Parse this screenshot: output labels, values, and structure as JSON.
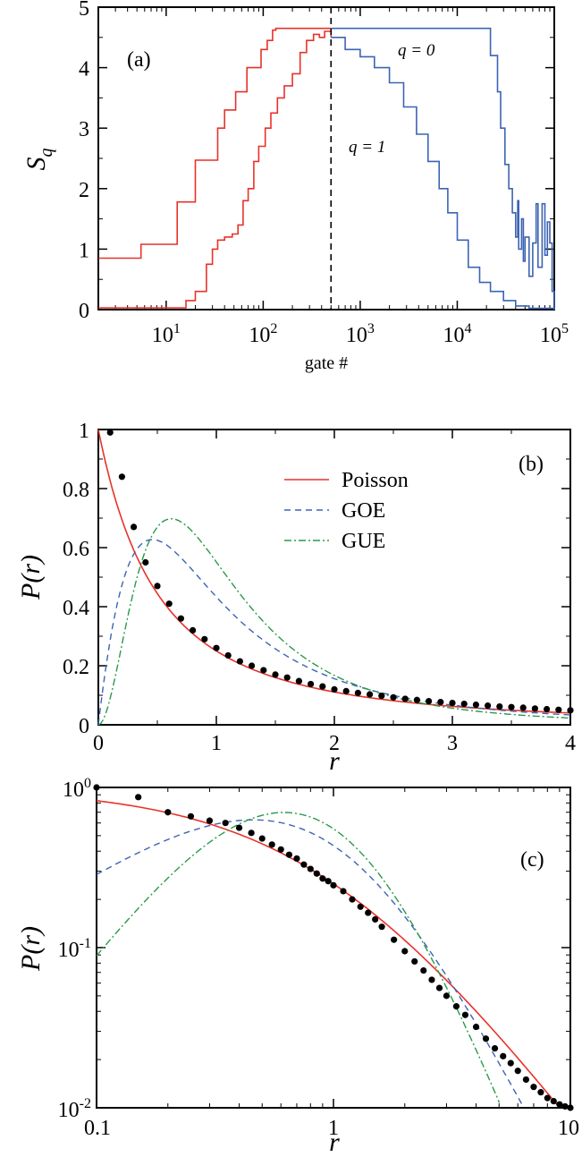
{
  "colors": {
    "poisson": "#e8322a",
    "goe": "#3c64b4",
    "gue": "#2a9a4a",
    "q0": "#3c64b4",
    "q1": "#3c64b4",
    "pre": "#e8322a",
    "points": "#000000"
  },
  "chart_data": [
    {
      "type": "line",
      "panel_label": "(a)",
      "xlabel": "gate #",
      "ylabel": "S_q",
      "xscale": "log",
      "xlim": [
        2,
        100000
      ],
      "ylim": [
        0,
        5
      ],
      "xticks": [
        {
          "v": 10,
          "base": "10",
          "exp": "1"
        },
        {
          "v": 100,
          "base": "10",
          "exp": "2"
        },
        {
          "v": 1000,
          "base": "10",
          "exp": "3"
        },
        {
          "v": 10000,
          "base": "10",
          "exp": "4"
        },
        {
          "v": 100000,
          "base": "10",
          "exp": "5"
        }
      ],
      "yticks": [
        "0",
        "1",
        "2",
        "3",
        "4",
        "5"
      ],
      "vline_x": 500,
      "annotations": {
        "q0": "q = 0",
        "q1": "q = 1"
      },
      "series": [
        {
          "id": "q0",
          "values": [
            [
              2,
              0.85
            ],
            [
              5,
              0.85
            ],
            [
              5.5,
              1.08
            ],
            [
              12,
              1.08
            ],
            [
              13,
              1.78
            ],
            [
              19,
              1.78
            ],
            [
              20,
              2.47
            ],
            [
              32,
              2.47
            ],
            [
              34,
              3.0
            ],
            [
              38,
              3.0
            ],
            [
              40,
              3.3
            ],
            [
              48,
              3.3
            ],
            [
              52,
              3.6
            ],
            [
              63,
              3.6
            ],
            [
              68,
              4.0
            ],
            [
              85,
              4.0
            ],
            [
              95,
              4.3
            ],
            [
              110,
              4.45
            ],
            [
              125,
              4.62
            ],
            [
              135,
              4.65
            ],
            [
              500,
              4.65
            ],
            [
              20000,
              4.65
            ],
            [
              22000,
              4.2
            ],
            [
              26000,
              3.6
            ],
            [
              28000,
              3.0
            ],
            [
              31000,
              2.4
            ],
            [
              34000,
              2.0
            ],
            [
              37000,
              1.6
            ],
            [
              40000,
              1.2
            ],
            [
              42000,
              1.8
            ],
            [
              43000,
              1.0
            ],
            [
              46000,
              1.5
            ],
            [
              48000,
              0.8
            ],
            [
              50000,
              1.2
            ],
            [
              55000,
              0.55
            ],
            [
              60000,
              1.1
            ],
            [
              65000,
              1.75
            ],
            [
              68000,
              0.7
            ],
            [
              75000,
              1.75
            ],
            [
              80000,
              0.9
            ],
            [
              85000,
              1.45
            ],
            [
              90000,
              1.1
            ],
            [
              95000,
              0.3
            ],
            [
              100000,
              0.0
            ]
          ]
        },
        {
          "id": "q1",
          "values": [
            [
              2,
              0.03
            ],
            [
              14,
              0.03
            ],
            [
              16,
              0.15
            ],
            [
              20,
              0.3
            ],
            [
              24,
              0.3
            ],
            [
              26,
              0.75
            ],
            [
              30,
              1.0
            ],
            [
              34,
              1.15
            ],
            [
              40,
              1.2
            ],
            [
              48,
              1.25
            ],
            [
              55,
              1.4
            ],
            [
              62,
              1.8
            ],
            [
              70,
              2.0
            ],
            [
              80,
              2.45
            ],
            [
              90,
              2.7
            ],
            [
              105,
              3.0
            ],
            [
              120,
              3.25
            ],
            [
              140,
              3.5
            ],
            [
              165,
              3.7
            ],
            [
              200,
              3.9
            ],
            [
              240,
              4.25
            ],
            [
              280,
              4.45
            ],
            [
              330,
              4.55
            ],
            [
              380,
              4.5
            ],
            [
              430,
              4.6
            ],
            [
              500,
              4.5
            ],
            [
              700,
              4.3
            ],
            [
              1000,
              4.18
            ],
            [
              1400,
              4.0
            ],
            [
              2000,
              3.75
            ],
            [
              2800,
              3.35
            ],
            [
              3800,
              2.9
            ],
            [
              5000,
              2.45
            ],
            [
              6500,
              2.0
            ],
            [
              8000,
              1.6
            ],
            [
              10000,
              1.15
            ],
            [
              13000,
              0.7
            ],
            [
              17000,
              0.45
            ],
            [
              22000,
              0.3
            ],
            [
              30000,
              0.15
            ],
            [
              40000,
              0.06
            ],
            [
              55000,
              0.02
            ],
            [
              100000,
              0.0
            ]
          ]
        }
      ]
    },
    {
      "type": "line",
      "panel_label": "(b)",
      "xlabel": "r",
      "ylabel": "P(r)",
      "xlim": [
        0,
        4
      ],
      "ylim": [
        0,
        1
      ],
      "xticks": [
        "0",
        "1",
        "2",
        "3",
        "4"
      ],
      "yticks": [
        "0",
        "0.2",
        "0.4",
        "0.6",
        "0.8",
        "1"
      ],
      "legend": [
        {
          "name": "Poisson",
          "style": "solid",
          "color_key": "poisson"
        },
        {
          "name": "GOE",
          "style": "dashed",
          "color_key": "goe"
        },
        {
          "name": "GUE",
          "style": "dashdot",
          "color_key": "gue"
        }
      ],
      "points": {
        "x": [
          0.1,
          0.2,
          0.3,
          0.4,
          0.5,
          0.6,
          0.7,
          0.8,
          0.9,
          1.0,
          1.1,
          1.2,
          1.3,
          1.4,
          1.5,
          1.6,
          1.7,
          1.8,
          1.9,
          2.0,
          2.1,
          2.2,
          2.3,
          2.4,
          2.5,
          2.6,
          2.7,
          2.8,
          2.9,
          3.0,
          3.1,
          3.2,
          3.3,
          3.4,
          3.5,
          3.6,
          3.7,
          3.8,
          3.9,
          4.0
        ],
        "y": [
          0.99,
          0.84,
          0.67,
          0.55,
          0.47,
          0.41,
          0.36,
          0.32,
          0.29,
          0.26,
          0.235,
          0.215,
          0.2,
          0.185,
          0.17,
          0.16,
          0.148,
          0.138,
          0.13,
          0.12,
          0.114,
          0.108,
          0.103,
          0.098,
          0.093,
          0.088,
          0.084,
          0.08,
          0.077,
          0.074,
          0.071,
          0.068,
          0.065,
          0.062,
          0.06,
          0.058,
          0.055,
          0.053,
          0.051,
          0.049
        ]
      }
    },
    {
      "type": "line",
      "panel_label": "(c)",
      "xlabel": "r",
      "ylabel": "P(r)",
      "xscale": "log",
      "yscale": "log",
      "xlim": [
        0.1,
        10
      ],
      "ylim": [
        0.01,
        1
      ],
      "xticks": [
        "0.1",
        "1",
        "10"
      ],
      "yticks": [
        {
          "v": 1,
          "base": "10",
          "exp": "0"
        },
        {
          "v": 0.1,
          "base": "10",
          "exp": "-1"
        },
        {
          "v": 0.01,
          "base": "10",
          "exp": "-2"
        }
      ],
      "points": {
        "x": [
          0.1,
          0.15,
          0.2,
          0.25,
          0.3,
          0.35,
          0.4,
          0.45,
          0.5,
          0.55,
          0.6,
          0.65,
          0.7,
          0.75,
          0.8,
          0.85,
          0.9,
          0.95,
          1.0,
          1.1,
          1.2,
          1.3,
          1.4,
          1.5,
          1.6,
          1.8,
          2.0,
          2.2,
          2.4,
          2.6,
          2.8,
          3.0,
          3.3,
          3.6,
          4.0,
          4.4,
          4.8,
          5.2,
          5.6,
          6.0,
          6.5,
          7.0,
          7.5,
          8.0,
          8.5,
          9.0,
          9.5,
          10.0
        ],
        "y": [
          1.0,
          0.87,
          0.7,
          0.66,
          0.62,
          0.6,
          0.56,
          0.52,
          0.48,
          0.44,
          0.41,
          0.38,
          0.36,
          0.33,
          0.31,
          0.29,
          0.27,
          0.26,
          0.245,
          0.225,
          0.2,
          0.18,
          0.165,
          0.15,
          0.135,
          0.112,
          0.095,
          0.082,
          0.072,
          0.063,
          0.056,
          0.05,
          0.043,
          0.038,
          0.032,
          0.027,
          0.0235,
          0.021,
          0.019,
          0.017,
          0.015,
          0.0135,
          0.0125,
          0.0115,
          0.011,
          0.0105,
          0.0102,
          0.01
        ]
      }
    }
  ]
}
